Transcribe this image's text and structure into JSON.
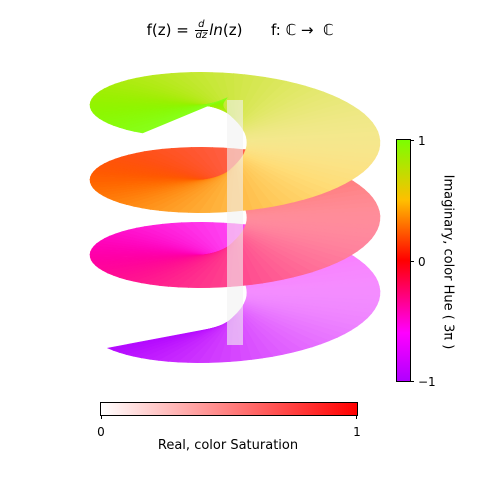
{
  "title": {
    "prefix": "f(z) = ",
    "numerator": "d",
    "denominator": "dz",
    "func": "ln",
    "arg": "(z)",
    "mapping": "f: ℂ →  ℂ"
  },
  "colorbar_hue": {
    "label": "Imaginary, color Hue ( 3π )",
    "ticks": [
      "1",
      "0",
      "−1"
    ],
    "colors": [
      "#7bff00",
      "#ffbf00",
      "#ff0000",
      "#ff0066",
      "#ff00ff",
      "#b000ff"
    ]
  },
  "colorbar_saturation": {
    "label": "Real, color Saturation",
    "ticks": [
      "0",
      "1"
    ],
    "colors": [
      "#ffffff",
      "#ff0000"
    ]
  },
  "chart_data": {
    "type": "surface",
    "title": "f(z) = d/dz ln(z)    f: ℂ → ℂ",
    "surface": "helix",
    "turns": 3,
    "imaginary_range": [
      -1,
      1
    ],
    "saturation_range": [
      0,
      1
    ],
    "hue_colorbar_label": "Imaginary, color Hue ( 3π )",
    "saturation_colorbar_label": "Real, color Saturation"
  }
}
